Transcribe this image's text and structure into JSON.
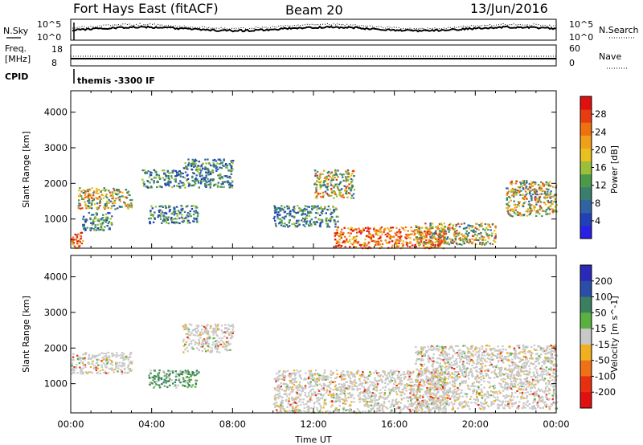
{
  "header": {
    "station": "Fort Hays East (fitACF)",
    "beam": "Beam 20",
    "date": "13/Jun/2016"
  },
  "strip_panels": {
    "nsky_label": "N.Sky",
    "nsky_ticks": [
      "10^5",
      "10^0"
    ],
    "nsearch_label": "N.Search",
    "nsearch_ticks": [
      "10^5",
      "10^0"
    ],
    "freq_label": "Freq.",
    "freq_unit": "[MHz]",
    "freq_ticks": [
      "18",
      "8"
    ],
    "nave_label": "Nave",
    "nave_ticks": [
      "60",
      "0"
    ],
    "cpid_label": "CPID",
    "cpid_value": "themis -3300 IF"
  },
  "chart_data": [
    {
      "type": "heatmap",
      "panel": "power",
      "ylabel": "Slant Range [km]",
      "xlabel": "",
      "xlim": [
        0,
        24
      ],
      "ylim": [
        180,
        4600
      ],
      "yticks": [
        "1000",
        "2000",
        "3000",
        "4000"
      ],
      "xticks": [
        "00:00",
        "04:00",
        "08:00",
        "12:00",
        "16:00",
        "20:00",
        "00:00"
      ],
      "colorbar": {
        "label": "Power [dB]",
        "ticks": [
          "4",
          "8",
          "12",
          "16",
          "20",
          "24",
          "28"
        ],
        "colors": [
          "#2a1fe6",
          "#2140b8",
          "#2f63a4",
          "#3a7f6e",
          "#4a9a4a",
          "#9cbf3a",
          "#e8c020",
          "#f0a018",
          "#f07010",
          "#e83c10",
          "#e01010"
        ]
      },
      "echo_regions": [
        {
          "t0": 0.0,
          "t1": 0.6,
          "r0": 200,
          "r1": 650,
          "level": "high"
        },
        {
          "t0": 0.3,
          "t1": 3.0,
          "r0": 1300,
          "r1": 1900,
          "level": "medium"
        },
        {
          "t0": 0.5,
          "t1": 2.0,
          "r0": 700,
          "r1": 1200,
          "level": "low"
        },
        {
          "t0": 3.5,
          "t1": 5.5,
          "r0": 1900,
          "r1": 2400,
          "level": "low"
        },
        {
          "t0": 3.8,
          "t1": 6.3,
          "r0": 900,
          "r1": 1400,
          "level": "low"
        },
        {
          "t0": 5.5,
          "t1": 8.0,
          "r0": 1900,
          "r1": 2700,
          "level": "low"
        },
        {
          "t0": 10.0,
          "t1": 13.2,
          "r0": 800,
          "r1": 1400,
          "level": "low"
        },
        {
          "t0": 12.0,
          "t1": 14.0,
          "r0": 1600,
          "r1": 2400,
          "level": "medium"
        },
        {
          "t0": 13.0,
          "t1": 18.5,
          "r0": 200,
          "r1": 800,
          "level": "high"
        },
        {
          "t0": 17.0,
          "t1": 21.0,
          "r0": 300,
          "r1": 900,
          "level": "medium"
        },
        {
          "t0": 21.5,
          "t1": 24.0,
          "r0": 1100,
          "r1": 2100,
          "level": "medium"
        }
      ]
    },
    {
      "type": "heatmap",
      "panel": "velocity",
      "ylabel": "Slant Range [km]",
      "xlabel": "Time UT",
      "xlim": [
        0,
        24
      ],
      "ylim": [
        180,
        4600
      ],
      "yticks": [
        "1000",
        "2000",
        "3000",
        "4000"
      ],
      "xticks": [
        "00:00",
        "04:00",
        "08:00",
        "12:00",
        "16:00",
        "20:00",
        "00:00"
      ],
      "colorbar": {
        "label": "Velocity [m s^-1]",
        "ticks": [
          "200",
          "100",
          "50",
          "15",
          "-15",
          "-50",
          "-100",
          "-200"
        ],
        "colors": [
          "#2a2ab8",
          "#2a4ea8",
          "#3a8060",
          "#5ab040",
          "#c8c8c8",
          "#f0b020",
          "#f07018",
          "#e83010",
          "#e01010"
        ]
      },
      "echo_regions": [
        {
          "t0": 0.0,
          "t1": 3.0,
          "r0": 1300,
          "r1": 1900,
          "level": "ground"
        },
        {
          "t0": 3.8,
          "t1": 6.3,
          "r0": 900,
          "r1": 1400,
          "level": "positive"
        },
        {
          "t0": 5.5,
          "t1": 8.0,
          "r0": 1900,
          "r1": 2700,
          "level": "ground"
        },
        {
          "t0": 10.0,
          "t1": 18.5,
          "r0": 200,
          "r1": 1400,
          "level": "ground"
        },
        {
          "t0": 17.0,
          "t1": 24.0,
          "r0": 300,
          "r1": 2100,
          "level": "ground"
        }
      ]
    }
  ]
}
